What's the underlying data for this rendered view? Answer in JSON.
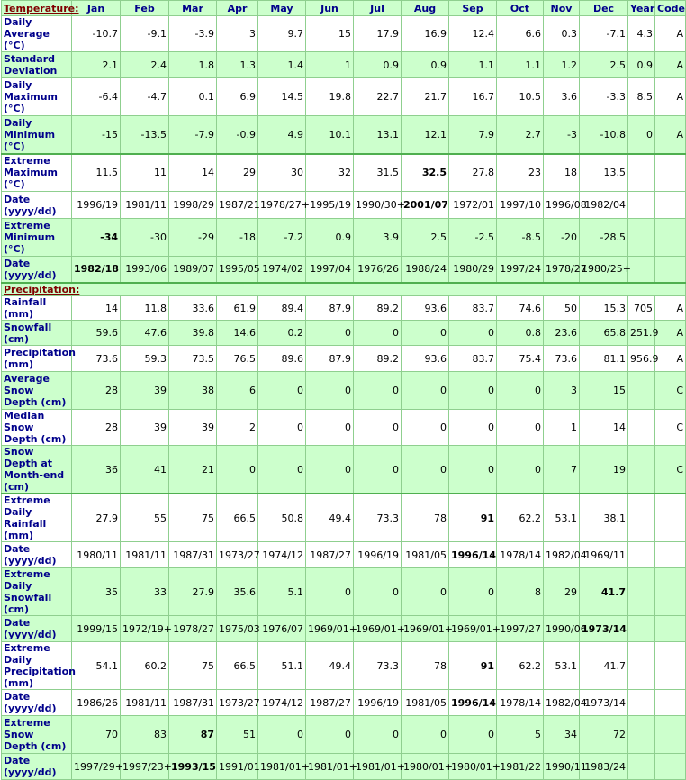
{
  "columns": [
    "Jan",
    "Feb",
    "Mar",
    "Apr",
    "May",
    "Jun",
    "Jul",
    "Aug",
    "Sep",
    "Oct",
    "Nov",
    "Dec",
    "Year",
    "Code"
  ],
  "sections": [
    {
      "title": "Temperature:",
      "rows": [
        {
          "label": "Daily Average (°C)",
          "cells": [
            "-10.7",
            "-9.1",
            "-3.9",
            "3",
            "9.7",
            "15",
            "17.9",
            "16.9",
            "12.4",
            "6.6",
            "0.3",
            "-7.1",
            "4.3",
            "A"
          ]
        },
        {
          "label": "Standard Deviation",
          "cells": [
            "2.1",
            "2.4",
            "1.8",
            "1.3",
            "1.4",
            "1",
            "0.9",
            "0.9",
            "1.1",
            "1.1",
            "1.2",
            "2.5",
            "0.9",
            "A"
          ]
        },
        {
          "label": "Daily Maximum (°C)",
          "cells": [
            "-6.4",
            "-4.7",
            "0.1",
            "6.9",
            "14.5",
            "19.8",
            "22.7",
            "21.7",
            "16.7",
            "10.5",
            "3.6",
            "-3.3",
            "8.5",
            "A"
          ]
        },
        {
          "label": "Daily Minimum (°C)",
          "cells": [
            "-15",
            "-13.5",
            "-7.9",
            "-0.9",
            "4.9",
            "10.1",
            "13.1",
            "12.1",
            "7.9",
            "2.7",
            "-3",
            "-10.8",
            "0",
            "A"
          ]
        },
        {
          "label": "Extreme Maximum (°C)",
          "cells": [
            "11.5",
            "11",
            "14",
            "29",
            "30",
            "32",
            "31.5",
            "32.5",
            "27.8",
            "23",
            "18",
            "13.5",
            null,
            null
          ]
        },
        {
          "label": "Date (yyyy/dd)",
          "cells": [
            "1996/19",
            "1981/11",
            "1998/29",
            "1987/21",
            "1978/27+",
            "1995/19",
            "1990/30+",
            "2001/07",
            "1972/01",
            "1997/10",
            "1996/08",
            "1982/04",
            null,
            null
          ]
        },
        {
          "label": "Extreme Minimum (°C)",
          "cells": [
            "-34",
            "-30",
            "-29",
            "-18",
            "-7.2",
            "0.9",
            "3.9",
            "2.5",
            "-2.5",
            "-8.5",
            "-20",
            "-28.5",
            null,
            null
          ]
        },
        {
          "label": "Date (yyyy/dd)",
          "cells": [
            "1982/18",
            "1993/06",
            "1989/07",
            "1995/05",
            "1974/02",
            "1997/04",
            "1976/26",
            "1988/24",
            "1980/29",
            "1997/24",
            "1978/27",
            "1980/25+",
            null,
            null
          ]
        }
      ]
    },
    {
      "title": "Precipitation:",
      "rows": [
        {
          "label": "Rainfall (mm)",
          "cells": [
            "14",
            "11.8",
            "33.6",
            "61.9",
            "89.4",
            "87.9",
            "89.2",
            "93.6",
            "83.7",
            "74.6",
            "50",
            "15.3",
            "705",
            "A"
          ]
        },
        {
          "label": "Snowfall (cm)",
          "cells": [
            "59.6",
            "47.6",
            "39.8",
            "14.6",
            "0.2",
            "0",
            "0",
            "0",
            "0",
            "0.8",
            "23.6",
            "65.8",
            "251.9",
            "A"
          ]
        },
        {
          "label": "Precipitation (mm)",
          "cells": [
            "73.6",
            "59.3",
            "73.5",
            "76.5",
            "89.6",
            "87.9",
            "89.2",
            "93.6",
            "83.7",
            "75.4",
            "73.6",
            "81.1",
            "956.9",
            "A"
          ]
        },
        {
          "label": "Average Snow Depth (cm)",
          "cells": [
            "28",
            "39",
            "38",
            "6",
            "0",
            "0",
            "0",
            "0",
            "0",
            "0",
            "3",
            "15",
            null,
            "C"
          ]
        },
        {
          "label": "Median Snow Depth (cm)",
          "cells": [
            "28",
            "39",
            "39",
            "2",
            "0",
            "0",
            "0",
            "0",
            "0",
            "0",
            "1",
            "14",
            null,
            "C"
          ]
        },
        {
          "label": "Snow Depth at Month-end (cm)",
          "cells": [
            "36",
            "41",
            "21",
            "0",
            "0",
            "0",
            "0",
            "0",
            "0",
            "0",
            "7",
            "19",
            null,
            "C"
          ]
        },
        {
          "label": "Extreme Daily Rainfall (mm)",
          "cells": [
            "27.9",
            "55",
            "75",
            "66.5",
            "50.8",
            "49.4",
            "73.3",
            "78",
            "91",
            "62.2",
            "53.1",
            "38.1",
            null,
            null
          ]
        },
        {
          "label": "Date (yyyy/dd)",
          "cells": [
            "1980/11",
            "1981/11",
            "1987/31",
            "1973/27",
            "1974/12",
            "1987/27",
            "1996/19",
            "1981/05",
            "1996/14",
            "1978/14",
            "1982/04",
            "1969/11",
            null,
            null
          ]
        },
        {
          "label": "Extreme Daily Snowfall (cm)",
          "cells": [
            "35",
            "33",
            "27.9",
            "35.6",
            "5.1",
            "0",
            "0",
            "0",
            "0",
            "8",
            "29",
            "41.7",
            null,
            null
          ]
        },
        {
          "label": "Date (yyyy/dd)",
          "cells": [
            "1999/15",
            "1972/19+",
            "1978/27",
            "1975/03",
            "1976/07",
            "1969/01+",
            "1969/01+",
            "1969/01+",
            "1969/01+",
            "1997/27",
            "1990/06",
            "1973/14",
            null,
            null
          ]
        },
        {
          "label": "Extreme Daily Precipitation (mm)",
          "cells": [
            "54.1",
            "60.2",
            "75",
            "66.5",
            "51.1",
            "49.4",
            "73.3",
            "78",
            "91",
            "62.2",
            "53.1",
            "41.7",
            null,
            null
          ]
        },
        {
          "label": "Date (yyyy/dd)",
          "cells": [
            "1986/26",
            "1981/11",
            "1987/31",
            "1973/27",
            "1974/12",
            "1987/27",
            "1996/19",
            "1981/05",
            "1996/14",
            "1978/14",
            "1982/04",
            "1973/14",
            null,
            null
          ]
        },
        {
          "label": "Extreme Snow Depth (cm)",
          "cells": [
            "70",
            "83",
            "87",
            "51",
            "0",
            "0",
            "0",
            "0",
            "0",
            "5",
            "34",
            "72",
            null,
            null
          ]
        },
        {
          "label": "Date (yyyy/dd)",
          "cells": [
            "1997/29+",
            "1997/23+",
            "1993/15",
            "1991/01",
            "1981/01+",
            "1981/01+",
            "1981/01+",
            "1980/01+",
            "1980/01+",
            "1981/22",
            "1990/11",
            "1983/24",
            null,
            null
          ]
        }
      ]
    }
  ]
}
